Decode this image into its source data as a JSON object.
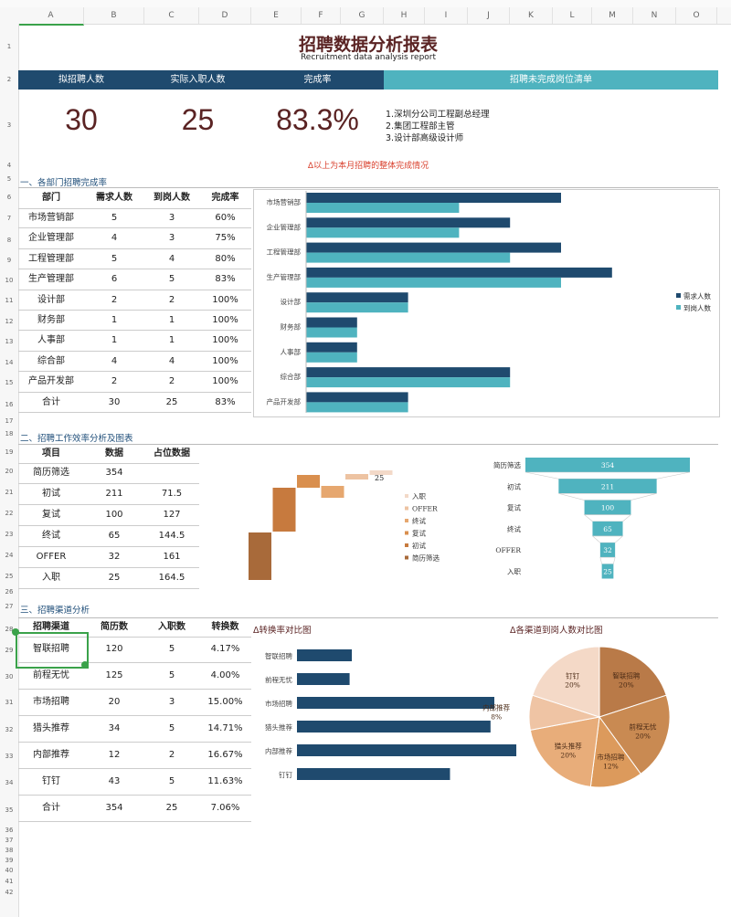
{
  "columns": [
    "A",
    "B",
    "C",
    "D",
    "E",
    "F",
    "G",
    "H",
    "I",
    "J",
    "K",
    "L",
    "M",
    "N",
    "O"
  ],
  "rows": [
    "1",
    "2",
    "3",
    "4",
    "5",
    "6",
    "7",
    "8",
    "9",
    "10",
    "11",
    "12",
    "13",
    "14",
    "15",
    "16",
    "17",
    "18",
    "19",
    "20",
    "21",
    "22",
    "23",
    "24",
    "25",
    "26",
    "27",
    "28",
    "29",
    "30",
    "31",
    "32",
    "33",
    "34",
    "35",
    "36",
    "37",
    "38",
    "39",
    "40",
    "41",
    "42"
  ],
  "title": "招聘数据分析报表",
  "subtitle": "Recruitment data analysis report",
  "summary": {
    "headers": [
      "拟招聘人数",
      "实际入职人数",
      "完成率",
      "招聘未完成岗位清单"
    ],
    "values": [
      "30",
      "25",
      "83.3%"
    ],
    "open_positions": [
      "1.深圳分公司工程副总经理",
      "2.集团工程部主管",
      "3.设计部高级设计师"
    ],
    "note": "Δ以上为本月招聘的整体完成情况"
  },
  "colors": {
    "navy": "#1f4a6e",
    "teal": "#4fb3bf",
    "title": "#5a2323",
    "note": "#d9412e"
  },
  "section1": {
    "title": "一、各部门招聘完成率",
    "headers": [
      "部门",
      "需求人数",
      "到岗人数",
      "完成率"
    ],
    "rows": [
      [
        "市场营销部",
        "5",
        "3",
        "60%"
      ],
      [
        "企业管理部",
        "4",
        "3",
        "75%"
      ],
      [
        "工程管理部",
        "5",
        "4",
        "80%"
      ],
      [
        "生产管理部",
        "6",
        "5",
        "83%"
      ],
      [
        "设计部",
        "2",
        "2",
        "100%"
      ],
      [
        "财务部",
        "1",
        "1",
        "100%"
      ],
      [
        "人事部",
        "1",
        "1",
        "100%"
      ],
      [
        "综合部",
        "4",
        "4",
        "100%"
      ],
      [
        "产品开发部",
        "2",
        "2",
        "100%"
      ],
      [
        "合计",
        "30",
        "25",
        "83%"
      ]
    ]
  },
  "section2": {
    "title": "二、招聘工作效率分析及图表",
    "headers": [
      "项目",
      "数据",
      "占位数据"
    ],
    "rows": [
      [
        "简历筛选",
        "354",
        ""
      ],
      [
        "初试",
        "211",
        "71.5"
      ],
      [
        "复试",
        "100",
        "127"
      ],
      [
        "终试",
        "65",
        "144.5"
      ],
      [
        "OFFER",
        "32",
        "161"
      ],
      [
        "入职",
        "25",
        "164.5"
      ]
    ]
  },
  "section3": {
    "title": "三、招聘渠道分析",
    "headers": [
      "招聘渠道",
      "简历数",
      "入职数",
      "转换数"
    ],
    "rows": [
      [
        "智联招聘",
        "120",
        "5",
        "4.17%"
      ],
      [
        "前程无忧",
        "125",
        "5",
        "4.00%"
      ],
      [
        "市场招聘",
        "20",
        "3",
        "15.00%"
      ],
      [
        "猎头推荐",
        "34",
        "5",
        "14.71%"
      ],
      [
        "内部推荐",
        "12",
        "2",
        "16.67%"
      ],
      [
        "钉钉",
        "43",
        "5",
        "11.63%"
      ],
      [
        "合计",
        "354",
        "25",
        "7.06%"
      ]
    ],
    "bar_title": "Δ转换率对比图",
    "pie_title": "Δ各渠道到岗人数对比图"
  },
  "chart_data": [
    {
      "type": "bar",
      "orientation": "horizontal",
      "categories": [
        "市场营销部",
        "企业管理部",
        "工程管理部",
        "生产管理部",
        "设计部",
        "财务部",
        "人事部",
        "综合部",
        "产品开发部"
      ],
      "series": [
        {
          "name": "需求人数",
          "values": [
            5,
            4,
            5,
            6,
            2,
            1,
            1,
            4,
            2
          ],
          "color": "#1f4a6e"
        },
        {
          "name": "到岗人数",
          "values": [
            3,
            3,
            4,
            5,
            2,
            1,
            1,
            4,
            2
          ],
          "color": "#4fb3bf"
        }
      ],
      "legend": "right"
    },
    {
      "type": "bar",
      "subtype": "waterfall",
      "categories": [
        "简历筛选",
        "初试",
        "复试",
        "终试",
        "OFFER",
        "入职"
      ],
      "values": [
        354,
        211,
        100,
        65,
        32,
        25
      ],
      "offsets": [
        0,
        71.5,
        127,
        144.5,
        161,
        164.5
      ],
      "colors": [
        "#a86a3a",
        "#c77a3e",
        "#d98f4e",
        "#e6a76f",
        "#edc3a2",
        "#f3d9c8"
      ],
      "data_label": "25",
      "legend": "right"
    },
    {
      "type": "bar",
      "subtype": "funnel",
      "categories": [
        "简历筛选",
        "初试",
        "复试",
        "终试",
        "OFFER",
        "入职"
      ],
      "values": [
        354,
        211,
        100,
        65,
        32,
        25
      ],
      "color": "#4fb3bf"
    },
    {
      "type": "bar",
      "orientation": "horizontal",
      "categories": [
        "智联招聘",
        "前程无忧",
        "市场招聘",
        "猎头推荐",
        "内部推荐",
        "钉钉"
      ],
      "values": [
        4.17,
        4.0,
        15.0,
        14.71,
        16.67,
        11.63
      ],
      "color": "#1f4a6e"
    },
    {
      "type": "pie",
      "categories": [
        "智联招聘",
        "前程无忧",
        "市场招聘",
        "猎头推荐",
        "内部推荐",
        "钉钉"
      ],
      "values": [
        5,
        5,
        3,
        5,
        2,
        5
      ],
      "labels": [
        "20%",
        "20%",
        "12%",
        "20%",
        "8%",
        "20%"
      ],
      "colors": [
        "#b97a48",
        "#c98a52",
        "#dc9a5c",
        "#e8ad7a",
        "#efc4a4",
        "#f4d9c7"
      ]
    }
  ]
}
